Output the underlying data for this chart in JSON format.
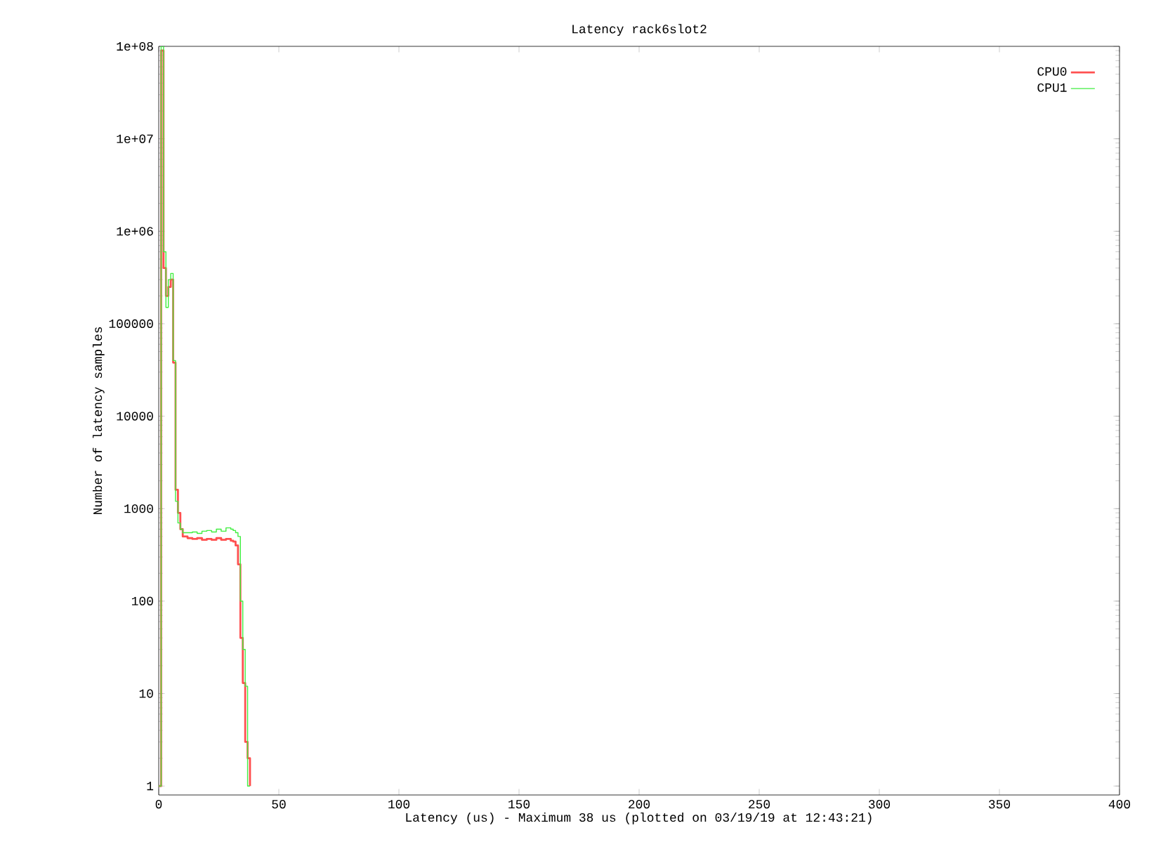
{
  "chart_data": {
    "type": "step",
    "title": "Latency rack6slot2",
    "xlabel": "Latency (us) - Maximum 38 us (plotted on 03/19/19 at 12:43:21)",
    "ylabel": "Number of latency samples",
    "log": "y",
    "legend": "top right",
    "grid": false,
    "xlim": [
      0,
      400
    ],
    "xticks": [
      0,
      50,
      100,
      150,
      200,
      250,
      300,
      350,
      400
    ],
    "ylim": [
      0.8,
      100000000
    ],
    "yticks": [
      1,
      10,
      100,
      1000,
      10000,
      100000,
      {
        "value": 1000000,
        "label": "1e+06"
      },
      {
        "value": 10000000,
        "label": "1e+07"
      },
      {
        "value": 100000000,
        "label": "1e+08"
      }
    ],
    "x": [
      0,
      1,
      2,
      3,
      4,
      5,
      6,
      7,
      8,
      9,
      10,
      12,
      14,
      16,
      18,
      20,
      22,
      24,
      26,
      28,
      30,
      31,
      32,
      33,
      34,
      35,
      36,
      37,
      38
    ],
    "series": [
      {
        "name": "CPU0",
        "color": "#ff5050",
        "values": [
          1,
          90000000,
          400000,
          200000,
          250000,
          300000,
          38000,
          1600,
          900,
          600,
          500,
          480,
          470,
          480,
          460,
          470,
          460,
          480,
          460,
          470,
          450,
          440,
          400,
          250,
          40,
          13,
          3,
          2,
          1
        ]
      },
      {
        "name": "CPU1",
        "color": "#40ee40",
        "values": [
          1,
          100000000,
          600000,
          150000,
          300000,
          350000,
          40000,
          1200,
          700,
          600,
          550,
          550,
          560,
          540,
          570,
          580,
          560,
          600,
          570,
          620,
          600,
          580,
          550,
          500,
          100,
          30,
          12,
          1,
          1
        ]
      }
    ]
  }
}
